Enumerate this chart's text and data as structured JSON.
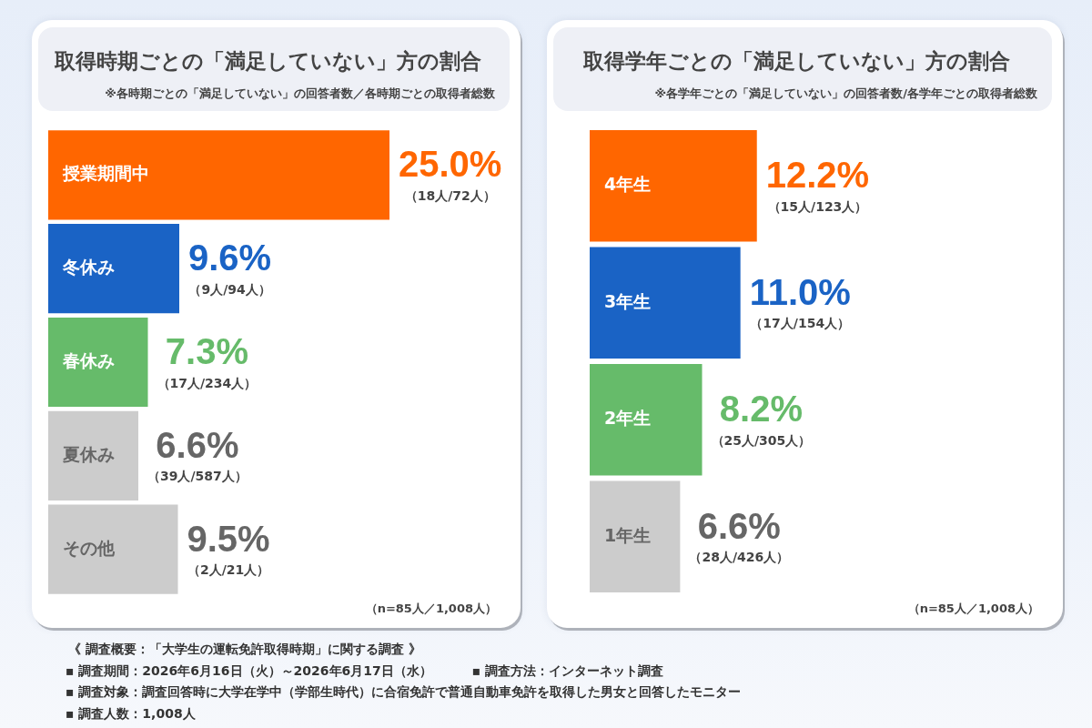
{
  "chart_data": [
    {
      "type": "bar",
      "orientation": "horizontal",
      "title": "取得時期ごとの「満足していない」方の割合",
      "subtitle": "※各時期ごとの「満足していない」の回答者数／各時期ごとの取得者総数",
      "categories": [
        "授業期間中",
        "冬休み",
        "春休み",
        "夏休み",
        "その他"
      ],
      "values": [
        25.0,
        9.6,
        7.3,
        6.6,
        9.5
      ],
      "colors": [
        "#ff6600",
        "#1a63c5",
        "#66bb6a",
        "#cccccc",
        "#cccccc"
      ],
      "value_labels": [
        "25.0%",
        "9.6%",
        "7.3%",
        "6.6%",
        "9.5%"
      ],
      "tick_labels": "y",
      "annotations": [
        {
          "text": "（18人/72人）",
          "x": 25.0,
          "y": "授業期間中"
        },
        {
          "text": "（9人/94人）",
          "x": 9.6,
          "y": "冬休み"
        },
        {
          "text": "（17人/234人）",
          "x": 7.3,
          "y": "春休み"
        },
        {
          "text": "（39人/587人）",
          "x": 6.6,
          "y": "夏休み"
        },
        {
          "text": "（2人/21人）",
          "x": 9.5,
          "y": "その他"
        },
        "（n=85人／1,008人）"
      ]
    },
    {
      "type": "bar",
      "orientation": "horizontal",
      "title": "取得学年ごとの「満足していない」方の割合",
      "subtitle": "※各学年ごとの「満足していない」の回答者数/各学年ごとの取得者総数",
      "categories": [
        "4年生",
        "3年生",
        "2年生",
        "1年生"
      ],
      "values": [
        12.2,
        11.0,
        8.2,
        6.6
      ],
      "colors": [
        "#ff6600",
        "#1a63c5",
        "#66bb6a",
        "#cccccc"
      ],
      "value_labels": [
        "12.2%",
        "11.0%",
        "8.2%",
        "6.6%"
      ],
      "tick_labels": "y",
      "annotations": [
        {
          "text": "（15人/123人）",
          "x": 12.2,
          "y": "4年生"
        },
        {
          "text": "（17人/154人）",
          "x": 11.0,
          "y": "3年生"
        },
        {
          "text": "（25人/305人）",
          "x": 8.2,
          "y": "2年生"
        },
        {
          "text": "（28人/426人）",
          "x": 6.6,
          "y": "1年生"
        },
        "（n=85人／1,008人）"
      ]
    },
    {
      "type": "other",
      "title": "《 調査概要：「大学生の運転免許取得時期」に関する調査 》",
      "annotations": [
        "▪ 調査期間：2026年6月16日（火）～2026年6月17日（水）",
        "▪ 調査方法：インターネット調査",
        "▪ 調査対象：調査回答時に大学在学中（学部生時代）に合宿免許で普通自動車免許を取得した男女と回答したモニター",
        "▪ 調査人数：1,008人"
      ]
    }
  ]
}
